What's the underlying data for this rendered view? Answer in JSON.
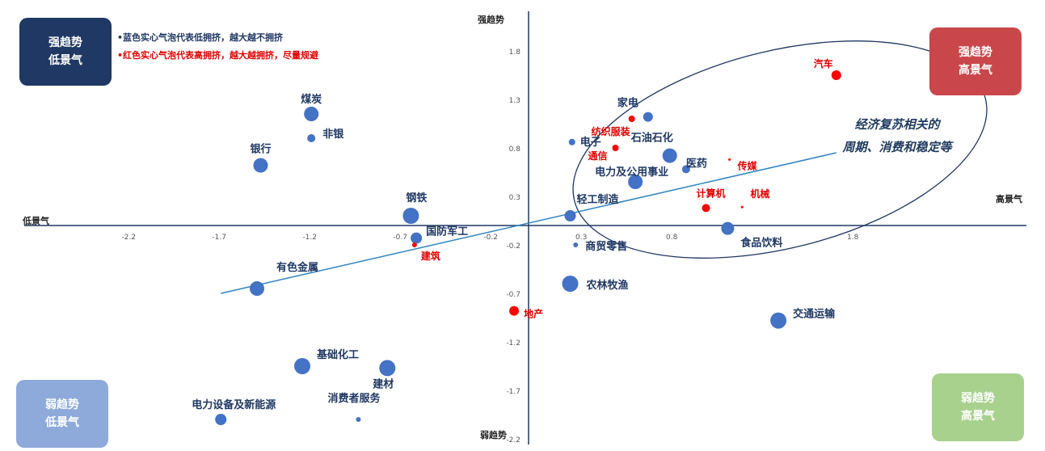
{
  "quadrants": {
    "top_left": {
      "line1": "强趋势",
      "line2": "低景气",
      "color": "#1f3864"
    },
    "top_right": {
      "line1": "强趋势",
      "line2": "高景气",
      "color": "#c9474b"
    },
    "bottom_left": {
      "line1": "弱趋势",
      "line2": "低景气",
      "color": "#8eaadb"
    },
    "bottom_right": {
      "line1": "弱趋势",
      "line2": "高景气",
      "color": "#a9d18e"
    }
  },
  "legend_notes": {
    "blue": "•蓝色实心气泡代表低拥挤，越大越不拥挤",
    "red": "•红色实心气泡代表高拥挤，越大越拥挤，尽量规避"
  },
  "axis_captions": {
    "top": "强趋势",
    "bottom": "弱趋势",
    "left": "低景气",
    "right": "高景气"
  },
  "ellipse_annotation": {
    "line1": "经济复苏相关的",
    "line2": "周期、消费和稳定等"
  },
  "chart_data": {
    "type": "scatter",
    "xlim": [
      -2.2,
      2.2
    ],
    "ylim": [
      -2.2,
      2.2
    ],
    "x_ticks": [
      -2.2,
      -1.7,
      -1.2,
      -0.7,
      -0.2,
      0.3,
      0.8,
      1.8
    ],
    "x_tick_labels": [
      "-2.2",
      "-1.7",
      "-1.2",
      "-0.7",
      "-0.2",
      "0.3",
      "0.8",
      "1.8"
    ],
    "y_ticks": [
      1.8,
      1.3,
      0.8,
      0.3,
      -0.2,
      -0.7,
      -1.2,
      -1.7,
      -2.2
    ],
    "y_tick_labels": [
      "1.8",
      "1.3",
      "0.8",
      "0.3",
      "-0.2",
      "-0.7",
      "-1.2",
      "-1.7",
      "-2.2"
    ],
    "grid": false,
    "colors": {
      "blue": "#4472c4",
      "red": "#ff0000",
      "axis": "#1f3864",
      "trend": "#2e86c1",
      "label_blue": "#1f3864",
      "label_red": "#e00000"
    },
    "trendline": {
      "x": [
        -1.7,
        1.7
      ],
      "y": [
        -0.7,
        0.75
      ]
    },
    "points": [
      {
        "name": "煤炭",
        "x": -1.2,
        "y": 1.15,
        "size": 9,
        "crowding": "low"
      },
      {
        "name": "非银",
        "x": -1.2,
        "y": 0.9,
        "size": 5,
        "crowding": "low"
      },
      {
        "name": "银行",
        "x": -1.48,
        "y": 0.62,
        "size": 9,
        "crowding": "low"
      },
      {
        "name": "钢铁",
        "x": -0.65,
        "y": 0.1,
        "size": 10,
        "crowding": "low"
      },
      {
        "name": "国防军工",
        "x": -0.62,
        "y": -0.13,
        "size": 7,
        "crowding": "low"
      },
      {
        "name": "建筑",
        "x": -0.63,
        "y": -0.2,
        "size": 3,
        "crowding": "high"
      },
      {
        "name": "有色金属",
        "x": -1.5,
        "y": -0.65,
        "size": 9,
        "crowding": "low"
      },
      {
        "name": "基础化工",
        "x": -1.25,
        "y": -1.45,
        "size": 10,
        "crowding": "low"
      },
      {
        "name": "建材",
        "x": -0.78,
        "y": -1.47,
        "size": 10,
        "crowding": "low"
      },
      {
        "name": "消费者服务",
        "x": -0.94,
        "y": -2.0,
        "size": 3,
        "crowding": "low"
      },
      {
        "name": "电力设备及新能源",
        "x": -1.7,
        "y": -2.0,
        "size": 7,
        "crowding": "low"
      },
      {
        "name": "汽车",
        "x": 1.7,
        "y": 1.55,
        "size": 6,
        "crowding": "high"
      },
      {
        "name": "家电",
        "x": 0.66,
        "y": 1.12,
        "size": 6,
        "crowding": "low"
      },
      {
        "name": "纺织服装",
        "x": 0.57,
        "y": 1.1,
        "size": 4,
        "crowding": "high"
      },
      {
        "name": "电子",
        "x": 0.24,
        "y": 0.86,
        "size": 4,
        "crowding": "low"
      },
      {
        "name": "通信",
        "x": 0.48,
        "y": 0.8,
        "size": 4,
        "crowding": "high"
      },
      {
        "name": "石油石化",
        "x": 0.78,
        "y": 0.72,
        "size": 9,
        "crowding": "low"
      },
      {
        "name": "医药",
        "x": 0.87,
        "y": 0.58,
        "size": 5,
        "crowding": "low"
      },
      {
        "name": "传媒",
        "x": 1.11,
        "y": 0.68,
        "size": 1.5,
        "crowding": "high"
      },
      {
        "name": "电力及公用事业",
        "x": 0.59,
        "y": 0.45,
        "size": 9,
        "crowding": "low"
      },
      {
        "name": "计算机",
        "x": 0.98,
        "y": 0.18,
        "size": 5,
        "crowding": "high"
      },
      {
        "name": "机械",
        "x": 1.18,
        "y": 0.19,
        "size": 1.5,
        "crowding": "high"
      },
      {
        "name": "轻工制造",
        "x": 0.23,
        "y": 0.1,
        "size": 7,
        "crowding": "low"
      },
      {
        "name": "食品饮料",
        "x": 1.1,
        "y": -0.03,
        "size": 8,
        "crowding": "low"
      },
      {
        "name": "商贸零售",
        "x": 0.26,
        "y": -0.2,
        "size": 3,
        "crowding": "low"
      },
      {
        "name": "农林牧渔",
        "x": 0.23,
        "y": -0.6,
        "size": 10,
        "crowding": "low"
      },
      {
        "name": "地产",
        "x": -0.08,
        "y": -0.88,
        "size": 6,
        "crowding": "high"
      },
      {
        "name": "交通运输",
        "x": 1.38,
        "y": -0.98,
        "size": 10,
        "crowding": "low"
      }
    ]
  }
}
